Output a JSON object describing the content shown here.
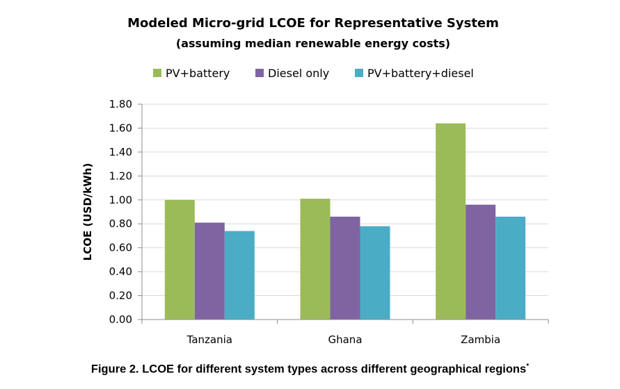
{
  "chart_data": {
    "type": "bar",
    "title": "Modeled Micro-grid LCOE for Representative System",
    "subtitle": "(assuming median renewable energy costs)",
    "ylabel": "LCOE (USD/kWh)",
    "xlabel": "",
    "ylim": [
      0,
      1.8
    ],
    "yticks": [
      "0.00",
      "0.20",
      "0.40",
      "0.60",
      "0.80",
      "1.00",
      "1.20",
      "1.40",
      "1.60",
      "1.80"
    ],
    "grid": true,
    "legend_position": "top",
    "categories": [
      "Tanzania",
      "Ghana",
      "Zambia"
    ],
    "series": [
      {
        "name": "PV+battery",
        "color": "#9bbb59",
        "values": [
          1.0,
          1.01,
          1.64
        ]
      },
      {
        "name": "Diesel only",
        "color": "#8064a2",
        "values": [
          0.81,
          0.86,
          0.96
        ]
      },
      {
        "name": "PV+battery+diesel",
        "color": "#4bacc6",
        "values": [
          0.74,
          0.78,
          0.86
        ]
      }
    ]
  },
  "caption": {
    "text": "Figure 2. LCOE for different system types across different geographical regions",
    "mark": "*"
  }
}
